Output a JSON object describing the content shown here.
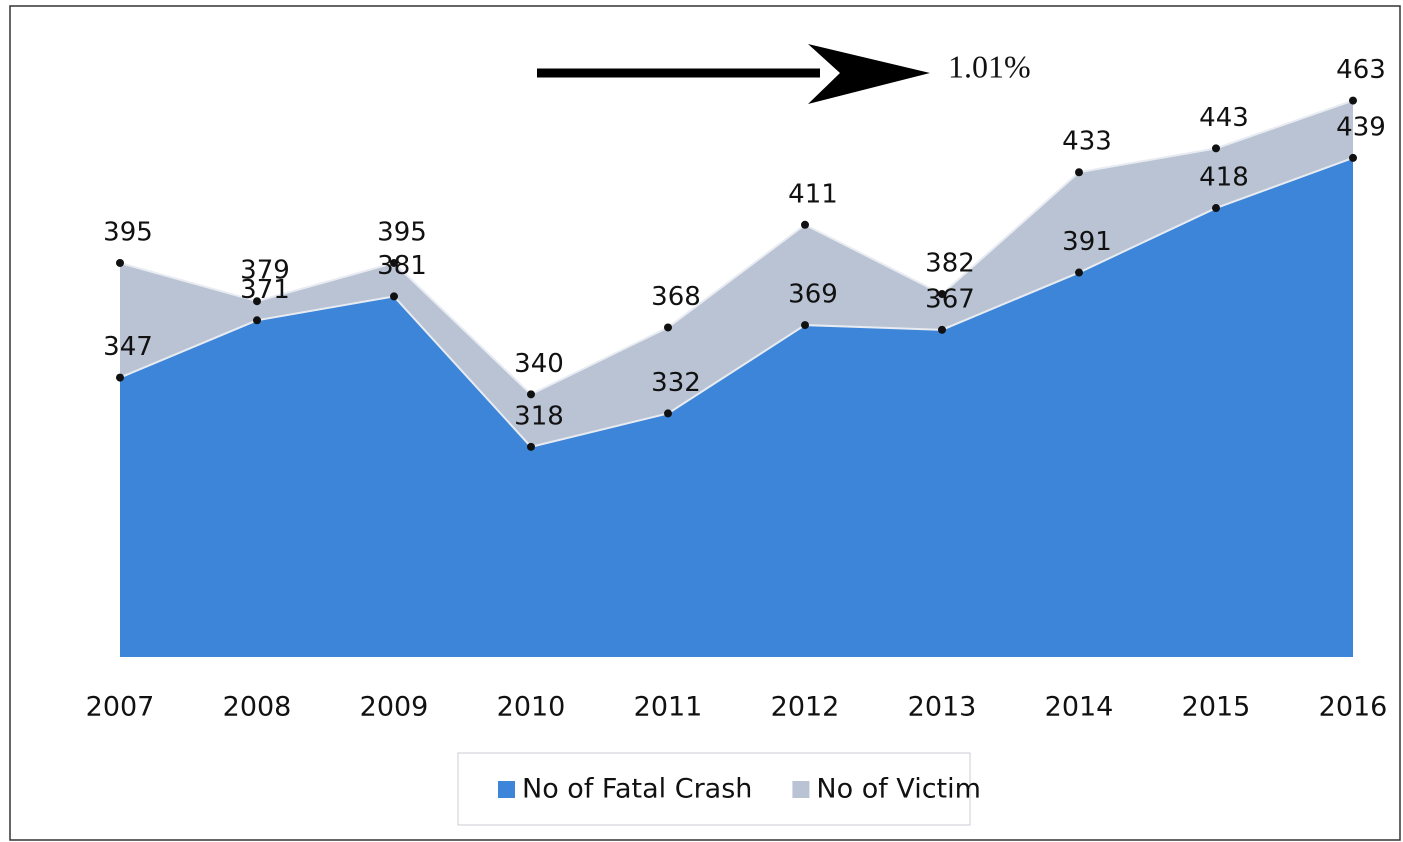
{
  "chart_data": {
    "type": "area",
    "categories": [
      "2007",
      "2008",
      "2009",
      "2010",
      "2011",
      "2012",
      "2013",
      "2014",
      "2015",
      "2016"
    ],
    "series": [
      {
        "name": "No of Fatal Crash",
        "color": "#3c85d8",
        "values": [
          347,
          371,
          381,
          318,
          332,
          369,
          367,
          391,
          418,
          439
        ]
      },
      {
        "name": "No of Victim",
        "color": "#b9c3d3",
        "values": [
          395,
          379,
          395,
          340,
          368,
          411,
          382,
          433,
          443,
          463
        ]
      }
    ],
    "ylim": [
      230,
      480
    ],
    "annotation": "1.01%",
    "legend": "bottom"
  }
}
